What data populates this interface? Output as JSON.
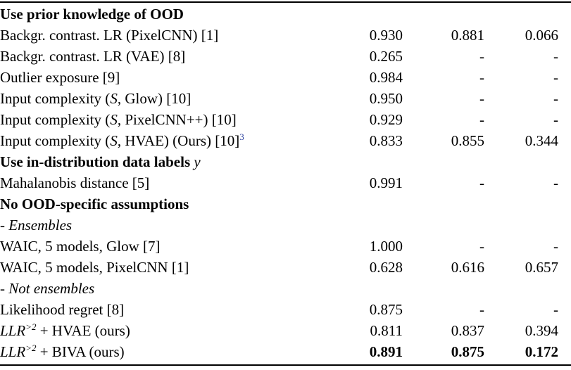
{
  "footnote_color": "#2F43A0",
  "table": {
    "rows": [
      {
        "kind": "section-header",
        "segments": [
          {
            "t": "Use prior knowledge of OOD",
            "s": "bold"
          }
        ],
        "values": [
          "",
          "",
          ""
        ]
      },
      {
        "kind": "method-row",
        "segments": [
          {
            "t": "Backgr. contrast. LR (PixelCNN) [1]",
            "s": "plain"
          }
        ],
        "values": [
          "0.930",
          "0.881",
          "0.066"
        ]
      },
      {
        "kind": "method-row",
        "segments": [
          {
            "t": "Backgr. contrast. LR (VAE) [8]",
            "s": "plain"
          }
        ],
        "values": [
          "0.265",
          "-",
          "-"
        ]
      },
      {
        "kind": "method-row",
        "segments": [
          {
            "t": "Outlier exposure [9]",
            "s": "plain"
          }
        ],
        "values": [
          "0.984",
          "-",
          "-"
        ]
      },
      {
        "kind": "method-row",
        "segments": [
          {
            "t": "Input complexity (",
            "s": "plain"
          },
          {
            "t": "S",
            "s": "math"
          },
          {
            "t": ", Glow) [10]",
            "s": "plain"
          }
        ],
        "values": [
          "0.950",
          "-",
          "-"
        ]
      },
      {
        "kind": "method-row",
        "segments": [
          {
            "t": "Input complexity (",
            "s": "plain"
          },
          {
            "t": "S",
            "s": "math"
          },
          {
            "t": ", PixelCNN++) [10]",
            "s": "plain"
          }
        ],
        "values": [
          "0.929",
          "-",
          "-"
        ]
      },
      {
        "kind": "method-row",
        "segments": [
          {
            "t": "Input complexity (",
            "s": "plain"
          },
          {
            "t": "S",
            "s": "math"
          },
          {
            "t": ", HVAE) (Ours) [10]",
            "s": "plain"
          },
          {
            "t": "3",
            "s": "sup-link"
          }
        ],
        "values": [
          "0.833",
          "0.855",
          "0.344"
        ]
      },
      {
        "kind": "section-header",
        "segments": [
          {
            "t": "Use in-distribution data labels ",
            "s": "bold"
          },
          {
            "t": "y",
            "s": "math"
          }
        ],
        "values": [
          "",
          "",
          ""
        ]
      },
      {
        "kind": "method-row",
        "segments": [
          {
            "t": "Mahalanobis distance [5]",
            "s": "plain"
          }
        ],
        "values": [
          "0.991",
          "-",
          "-"
        ]
      },
      {
        "kind": "section-header",
        "segments": [
          {
            "t": "No OOD-specific assumptions",
            "s": "bold"
          }
        ],
        "values": [
          "",
          "",
          ""
        ]
      },
      {
        "kind": "subsection-header",
        "segments": [
          {
            "t": "- Ensembles",
            "s": "italic"
          }
        ],
        "values": [
          "",
          "",
          ""
        ]
      },
      {
        "kind": "method-row",
        "segments": [
          {
            "t": "WAIC, 5 models, Glow [7]",
            "s": "plain"
          }
        ],
        "values": [
          "1.000",
          "-",
          "-"
        ]
      },
      {
        "kind": "method-row",
        "segments": [
          {
            "t": "WAIC, 5 models, PixelCNN [1]",
            "s": "plain"
          }
        ],
        "values": [
          "0.628",
          "0.616",
          "0.657"
        ]
      },
      {
        "kind": "subsection-header",
        "segments": [
          {
            "t": "- Not ensembles",
            "s": "italic"
          }
        ],
        "values": [
          "",
          "",
          ""
        ]
      },
      {
        "kind": "method-row",
        "segments": [
          {
            "t": "Likelihood regret [8]",
            "s": "plain"
          }
        ],
        "values": [
          "0.875",
          "-",
          "-"
        ]
      },
      {
        "kind": "method-row",
        "segments": [
          {
            "t": "LLR",
            "s": "math"
          },
          {
            "t": ">2",
            "s": "sup-math"
          },
          {
            "t": " + HVAE (ours)",
            "s": "plain"
          }
        ],
        "values": [
          "0.811",
          "0.837",
          "0.394"
        ]
      },
      {
        "kind": "method-row",
        "bold_values": true,
        "segments": [
          {
            "t": "LLR",
            "s": "math"
          },
          {
            "t": ">2",
            "s": "sup-math"
          },
          {
            "t": " + BIVA (ours)",
            "s": "plain"
          }
        ],
        "values": [
          "0.891",
          "0.875",
          "0.172"
        ]
      }
    ]
  }
}
